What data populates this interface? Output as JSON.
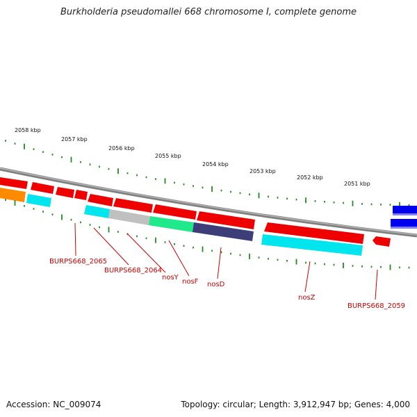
{
  "title": "Burkholderia pseudomallei 668 chromosome I, complete genome",
  "footer": {
    "accession": "Accession: NC_009074",
    "summary": "Topology: circular; Length: 3,912,947 bp; Genes: 4,000"
  },
  "ruler": {
    "unit": "kbp",
    "labels": [
      "2058 kbp",
      "2057 kbp",
      "2056 kbp",
      "2055 kbp",
      "2054 kbp",
      "2053 kbp",
      "2052 kbp",
      "2051 kbp"
    ]
  },
  "gene_labels": [
    "BURPS668_2065",
    "BURPS668_2064",
    "nosY",
    "nosF",
    "nosD",
    "nosZ",
    "BURPS668_2059"
  ],
  "colors": {
    "forward_gene": "#ff0000",
    "reverse_gene": "#ff0000",
    "backbone": "#8a8a8a",
    "tick": "#228b22",
    "label": "#cc0000",
    "cyan": "#00e5ee",
    "orange": "#ff8c00",
    "gray": "#c0c0c0",
    "green": "#1fe98a",
    "navy": "#3d3d7a",
    "blue": "#0000ee"
  }
}
